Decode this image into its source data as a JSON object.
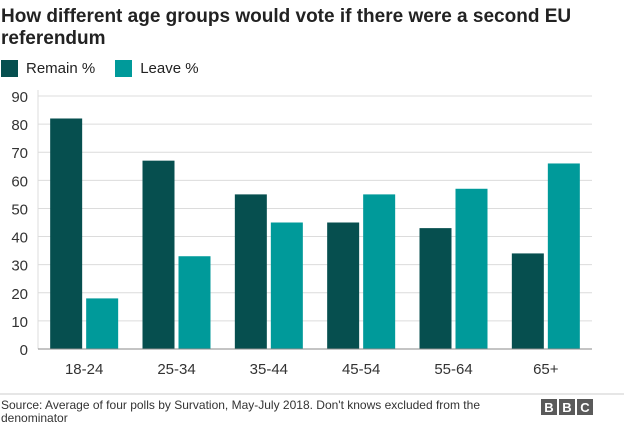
{
  "chart_data": {
    "type": "bar",
    "title": "How different age groups would vote if there were a second EU referendum",
    "categories": [
      "18-24",
      "25-34",
      "35-44",
      "45-54",
      "55-64",
      "65+"
    ],
    "series": [
      {
        "name": "Remain %",
        "values": [
          82,
          67,
          55,
          45,
          43,
          34
        ],
        "color": "#064f4f"
      },
      {
        "name": "Leave %",
        "values": [
          18,
          33,
          45,
          55,
          57,
          66
        ],
        "color": "#009a9a"
      }
    ],
    "yticks": [
      0,
      10,
      20,
      30,
      40,
      50,
      60,
      70,
      80,
      90
    ],
    "ylim": [
      0,
      90
    ],
    "grid": true,
    "legend": "top-left",
    "xlabel": "",
    "ylabel": ""
  },
  "source": "Source: Average of four polls by Survation, May-July 2018. Don't knows excluded from the denominator",
  "logo": "BBC"
}
